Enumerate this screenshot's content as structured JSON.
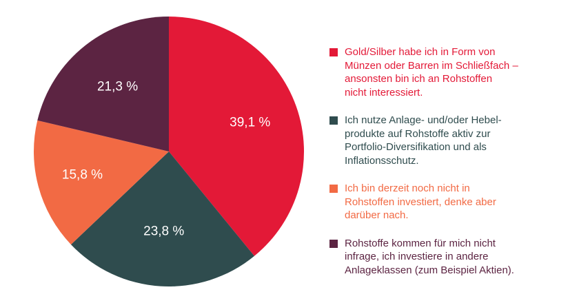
{
  "chart_data": {
    "type": "pie",
    "title": "",
    "slices": [
      {
        "name": "Gold/Silber habe ich in Form von\nMünzen oder Barren im Schließfach –\nansonsten bin ich an Rohstoffen\nnicht interessiert.",
        "value": 39.1,
        "label": "39,1 %",
        "color": "#e31937"
      },
      {
        "name": "Ich nutze Anlage- und/oder Hebel-\nprodukte auf Rohstoffe aktiv zur\nPortfolio-Diversifikation und als\nInflationsschutz.",
        "value": 23.8,
        "label": "23,8 %",
        "color": "#2f4c4e"
      },
      {
        "name": "Ich bin derzeit noch nicht in\nRohstoffen investiert, denke aber\ndarüber nach.",
        "value": 15.8,
        "label": "15,8 %",
        "color": "#f26a44"
      },
      {
        "name": "Rohstoffe kommen für mich nicht\ninfrage, ich investiere in andere\nAnlageklassen (zum Beispiel Aktien).",
        "value": 21.3,
        "label": "21,3 %",
        "color": "#5c2442"
      }
    ],
    "start": "top",
    "direction": "clockwise",
    "legend_position": "right"
  },
  "legend_text_colors": [
    "#e31937",
    "#2f4c4e",
    "#f26a44",
    "#5c2442"
  ]
}
